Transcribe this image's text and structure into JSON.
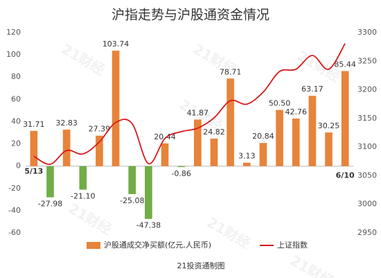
{
  "chart_data": {
    "type": "bar_line",
    "title": "沪指走势与沪股通资金情况",
    "footer": "21投资通制图",
    "watermark": "21财经",
    "categories": [
      "5/13",
      null,
      null,
      null,
      null,
      null,
      null,
      null,
      null,
      null,
      null,
      null,
      null,
      null,
      null,
      null,
      null,
      null,
      null,
      "6/10"
    ],
    "series": [
      {
        "name": "沪股通成交净买额(亿元,人民币)",
        "type": "bar",
        "color": "#e8833a",
        "negative_color": "#70ad47",
        "values": [
          31.71,
          -27.98,
          32.83,
          -21.1,
          27.39,
          103.74,
          -25.08,
          -47.38,
          20.44,
          -0.86,
          41.87,
          24.82,
          78.71,
          3.13,
          20.84,
          50.5,
          42.76,
          63.17,
          30.25,
          85.44
        ],
        "value_labels": [
          "31.71",
          "-27.98",
          "32.83",
          "-21.10",
          "27.39",
          "103.74",
          "-25.08",
          "-47.38",
          "20.44",
          "-0.86",
          "41.87",
          "24.82",
          "78.71",
          "3.13",
          "20.84",
          "50.50",
          "42.76",
          "63.17",
          "30.25",
          "85.44"
        ]
      },
      {
        "name": "上证指数",
        "type": "line",
        "axis": "y2",
        "color": "#d7191c",
        "smooth": true,
        "values": [
          3084,
          3070,
          3094,
          3088,
          3109,
          3143,
          3141,
          3071,
          3115,
          3127,
          3133,
          3151,
          3181,
          3175,
          3196,
          3232,
          3236,
          3260,
          3236,
          3281
        ]
      }
    ],
    "ylim": [
      -60,
      120
    ],
    "yticks": [
      -60,
      -40,
      -20,
      0,
      20,
      40,
      60,
      80,
      100,
      120
    ],
    "y2lim": [
      2950,
      3300
    ],
    "y2ticks": [
      2950,
      3000,
      3050,
      3100,
      3150,
      3200,
      3250,
      3300
    ],
    "legend": "bottom"
  }
}
